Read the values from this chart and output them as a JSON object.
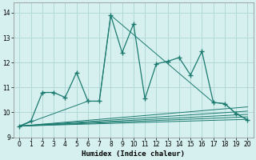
{
  "xlabel": "Humidex (Indice chaleur)",
  "bg_color": "#d6f0f0",
  "grid_color": "#b2d8d8",
  "line_color": "#1a7a6e",
  "xlim": [
    -0.5,
    20.5
  ],
  "ylim": [
    9.0,
    14.4
  ],
  "yticks": [
    9,
    10,
    11,
    12,
    13,
    14
  ],
  "xticks": [
    0,
    1,
    2,
    3,
    4,
    5,
    6,
    7,
    8,
    9,
    10,
    11,
    12,
    13,
    14,
    15,
    16,
    17,
    18,
    19,
    20
  ],
  "main_x": [
    0,
    1,
    2,
    3,
    4,
    5,
    6,
    7,
    8,
    9,
    10,
    11,
    12,
    13,
    14,
    15,
    16,
    17,
    18,
    19,
    20
  ],
  "main_y": [
    9.45,
    9.65,
    10.8,
    10.8,
    10.6,
    11.6,
    10.45,
    10.45,
    13.9,
    12.4,
    13.55,
    10.55,
    11.95,
    12.05,
    12.2,
    11.5,
    12.45,
    10.4,
    10.35,
    9.95,
    9.7
  ],
  "flat_lines": [
    {
      "x": [
        0,
        20
      ],
      "y": [
        9.45,
        9.72
      ]
    },
    {
      "x": [
        0,
        20
      ],
      "y": [
        9.45,
        9.82
      ]
    },
    {
      "x": [
        0,
        20
      ],
      "y": [
        9.45,
        9.92
      ]
    },
    {
      "x": [
        0,
        20
      ],
      "y": [
        9.45,
        10.05
      ]
    },
    {
      "x": [
        0,
        20
      ],
      "y": [
        9.45,
        10.22
      ]
    },
    {
      "x": [
        0,
        6,
        7,
        8,
        17,
        18,
        19,
        20
      ],
      "y": [
        9.45,
        10.45,
        10.45,
        13.9,
        10.4,
        10.35,
        9.95,
        9.7
      ]
    }
  ]
}
